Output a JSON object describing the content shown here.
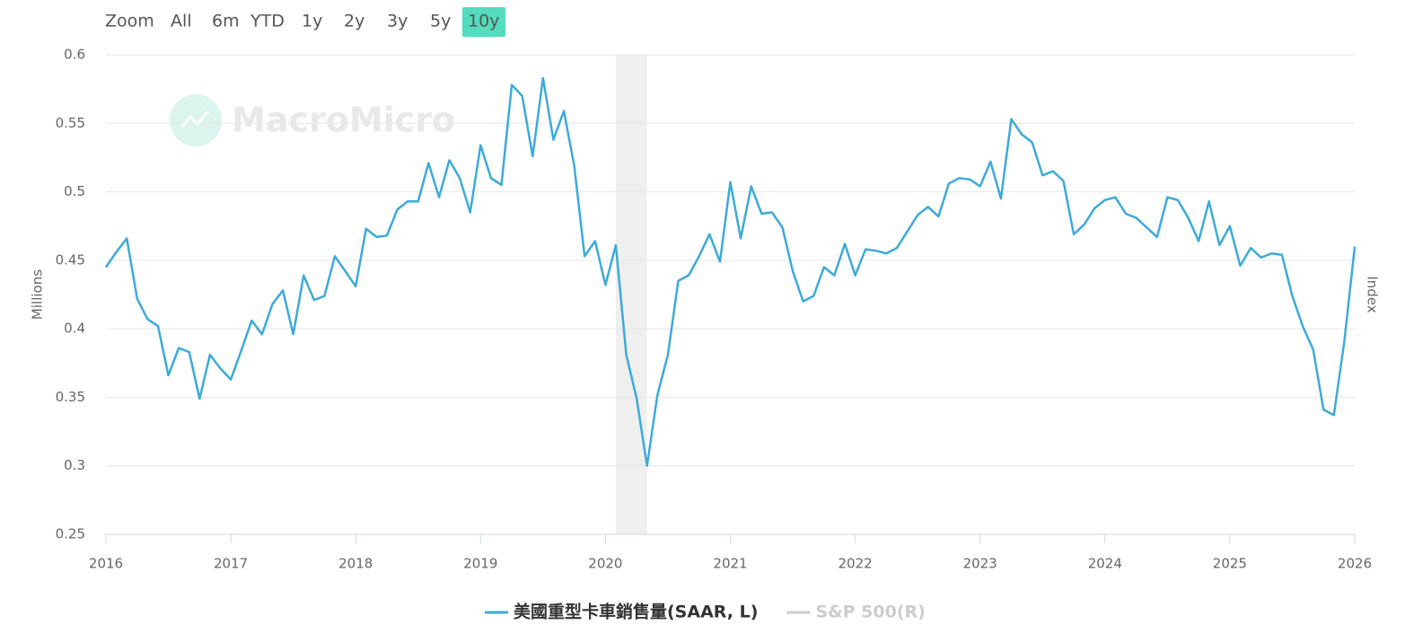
{
  "range_selector": {
    "label": "Zoom",
    "buttons": [
      "All",
      "6m",
      "YTD",
      "1y",
      "2y",
      "3y",
      "5y",
      "10y"
    ],
    "selected": "10y"
  },
  "watermark": "MacroMicro",
  "chart_data": {
    "type": "line",
    "y_label": "Millions",
    "y2_label": "Index",
    "xlim": [
      2016,
      2026
    ],
    "xticks": [
      2016,
      2017,
      2018,
      2019,
      2020,
      2021,
      2022,
      2023,
      2024,
      2025,
      2026
    ],
    "ylim": [
      0.25,
      0.6
    ],
    "yticks": [
      0.25,
      0.3,
      0.35,
      0.4,
      0.45,
      0.5,
      0.55,
      0.6
    ],
    "grid": true,
    "shaded_regions": [
      [
        2020.083,
        2020.333
      ]
    ],
    "x": [
      2016,
      2016.083,
      2016.167,
      2016.25,
      2016.333,
      2016.417,
      2016.5,
      2016.583,
      2016.667,
      2016.75,
      2016.833,
      2016.917,
      2017,
      2017.083,
      2017.167,
      2017.25,
      2017.333,
      2017.417,
      2017.5,
      2017.583,
      2017.667,
      2017.75,
      2017.833,
      2017.917,
      2018,
      2018.083,
      2018.167,
      2018.25,
      2018.333,
      2018.417,
      2018.5,
      2018.583,
      2018.667,
      2018.75,
      2018.833,
      2018.917,
      2019,
      2019.083,
      2019.167,
      2019.25,
      2019.333,
      2019.417,
      2019.5,
      2019.583,
      2019.667,
      2019.75,
      2019.833,
      2019.917,
      2020,
      2020.083,
      2020.167,
      2020.25,
      2020.333,
      2020.417,
      2020.5,
      2020.583,
      2020.667,
      2020.75,
      2020.833,
      2020.917,
      2021,
      2021.083,
      2021.167,
      2021.25,
      2021.333,
      2021.417,
      2021.5,
      2021.583,
      2021.667,
      2021.75,
      2021.833,
      2021.917,
      2022,
      2022.083,
      2022.167,
      2022.25,
      2022.333,
      2022.417,
      2022.5,
      2022.583,
      2022.667,
      2022.75,
      2022.833,
      2022.917,
      2023,
      2023.083,
      2023.167,
      2023.25,
      2023.333,
      2023.417,
      2023.5,
      2023.583,
      2023.667,
      2023.75,
      2023.833,
      2023.917,
      2024,
      2024.083,
      2024.167,
      2024.25,
      2024.333,
      2024.417,
      2024.5,
      2024.583,
      2024.667,
      2024.75,
      2024.833,
      2024.917,
      2025,
      2025.083,
      2025.167,
      2025.25,
      2025.333,
      2025.417,
      2025.5,
      2025.583,
      2025.667,
      2025.75,
      2025.833,
      2025.917,
      2026
    ],
    "series": [
      {
        "name": "美國重型卡車銷售量(SAAR, L)",
        "color": "#3daad9",
        "values": [
          0.445,
          0.456,
          0.466,
          0.422,
          0.407,
          0.402,
          0.366,
          0.386,
          0.383,
          0.349,
          0.381,
          0.371,
          0.363,
          0.384,
          0.406,
          0.396,
          0.418,
          0.428,
          0.396,
          0.439,
          0.421,
          0.424,
          0.453,
          0.442,
          0.431,
          0.473,
          0.467,
          0.468,
          0.487,
          0.493,
          0.493,
          0.521,
          0.496,
          0.523,
          0.51,
          0.485,
          0.534,
          0.51,
          0.505,
          0.578,
          0.57,
          0.526,
          0.583,
          0.538,
          0.559,
          0.519,
          0.453,
          0.464,
          0.432,
          0.461,
          0.381,
          0.349,
          0.3,
          0.352,
          0.381,
          0.435,
          0.439,
          0.453,
          0.469,
          0.449,
          0.507,
          0.466,
          0.504,
          0.484,
          0.485,
          0.474,
          0.442,
          0.42,
          0.424,
          0.445,
          0.439,
          0.462,
          0.439,
          0.458,
          0.457,
          0.455,
          0.459,
          0.471,
          0.483,
          0.489,
          0.482,
          0.506,
          0.51,
          0.509,
          0.504,
          0.522,
          0.495,
          0.553,
          0.542,
          0.536,
          0.512,
          0.515,
          0.508,
          0.469,
          0.476,
          0.488,
          0.494,
          0.496,
          0.484,
          0.481,
          0.474,
          0.467,
          0.496,
          0.494,
          0.481,
          0.464,
          0.493,
          0.461,
          0.475,
          0.446,
          0.459,
          0.452,
          0.455,
          0.454,
          0.424,
          0.402,
          0.385,
          0.341,
          0.337,
          0.391,
          0.46
        ]
      }
    ],
    "inactive_series": [
      {
        "name": "S&P 500(R)",
        "color": "#cccccc"
      }
    ]
  }
}
